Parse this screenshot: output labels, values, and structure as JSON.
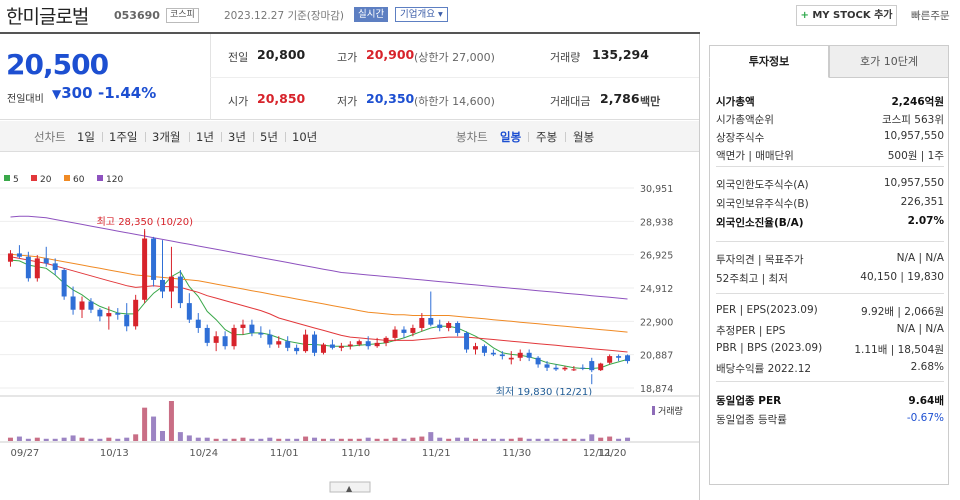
{
  "header": {
    "name": "한미글로벌",
    "code": "053690",
    "market": "코스피",
    "timestamp": "2023.12.27 기준(장마감)",
    "realtime_label": "실시간",
    "company_label": "기업개요",
    "mystock_label": "MY STOCK 추가",
    "quick_order_label": "빠른주문"
  },
  "price": {
    "current": "20,500",
    "change_label": "전일대비",
    "change": "300",
    "change_pct": "-1.44%",
    "prev_label": "전일",
    "prev": "20,800",
    "high_label": "고가",
    "high": "20,900",
    "upper_limit": "(상한가 27,000)",
    "volume_label": "거래량",
    "volume": "135,294",
    "open_label": "시가",
    "open": "20,850",
    "low_label": "저가",
    "low": "20,350",
    "lower_limit": "(하한가 14,600)",
    "amount_label": "거래대금",
    "amount": "2,786",
    "amount_unit": "백만"
  },
  "toolbar": {
    "line_chart": "선차트",
    "periods": [
      "1일",
      "1주일",
      "3개월",
      "1년",
      "3년",
      "5년",
      "10년"
    ],
    "candle_chart": "봉차트",
    "candle_periods": [
      "일봉",
      "주봉",
      "월봉"
    ]
  },
  "chart_data": {
    "type": "candlestick",
    "legend": [
      {
        "name": "5",
        "color": "#3aa84a"
      },
      {
        "name": "20",
        "color": "#e2383b"
      },
      {
        "name": "60",
        "color": "#f08a24"
      },
      {
        "name": "120",
        "color": "#8e52bf"
      }
    ],
    "y_ticks": [
      "30,951",
      "28,938",
      "26,925",
      "24,912",
      "22,900",
      "20,887",
      "18,874"
    ],
    "ylim": [
      18874,
      30951
    ],
    "x_ticks": [
      "09/27",
      "10/13",
      "10/24",
      "11/01",
      "11/10",
      "11/21",
      "11/30",
      "12/11",
      "12/20"
    ],
    "max_annotation": "최고 28,350 (10/20)",
    "min_annotation": "최저 19,830 (12/21)",
    "volume_label": "거래량",
    "candles": [
      [
        26500,
        27200,
        26200,
        27000
      ],
      [
        27000,
        27500,
        26700,
        26800
      ],
      [
        26800,
        27100,
        25300,
        25500
      ],
      [
        25500,
        26900,
        25300,
        26700
      ],
      [
        26700,
        27400,
        26200,
        26400
      ],
      [
        26400,
        26700,
        25700,
        26000
      ],
      [
        26000,
        26100,
        24200,
        24400
      ],
      [
        24400,
        25000,
        23300,
        23600
      ],
      [
        23600,
        24400,
        23100,
        24100
      ],
      [
        24100,
        24300,
        23400,
        23600
      ],
      [
        23600,
        23700,
        22900,
        23200
      ],
      [
        23200,
        23800,
        22400,
        23400
      ],
      [
        23400,
        23700,
        23000,
        23300
      ],
      [
        23300,
        24000,
        22300,
        22600
      ],
      [
        22600,
        24500,
        22400,
        24200
      ],
      [
        24200,
        28350,
        24000,
        27900
      ],
      [
        27900,
        28000,
        25000,
        25400
      ],
      [
        25400,
        27800,
        24300,
        24700
      ],
      [
        24700,
        27400,
        23700,
        25600
      ],
      [
        25600,
        26000,
        23700,
        24000
      ],
      [
        24000,
        24600,
        22800,
        23000
      ],
      [
        23000,
        23400,
        22200,
        22500
      ],
      [
        22500,
        22700,
        21400,
        21600
      ],
      [
        21600,
        22300,
        21100,
        22000
      ],
      [
        22000,
        22300,
        21200,
        21400
      ],
      [
        21400,
        22700,
        21200,
        22500
      ],
      [
        22500,
        23000,
        22100,
        22700
      ],
      [
        22700,
        23000,
        22000,
        22200
      ],
      [
        22200,
        22600,
        21900,
        22100
      ],
      [
        22100,
        22400,
        21300,
        21500
      ],
      [
        21500,
        22000,
        21300,
        21700
      ],
      [
        21700,
        22000,
        21100,
        21300
      ],
      [
        21300,
        21500,
        20900,
        21100
      ],
      [
        21100,
        22400,
        21000,
        22100
      ],
      [
        22100,
        22300,
        20800,
        21000
      ],
      [
        21000,
        21600,
        20900,
        21500
      ],
      [
        21500,
        21800,
        21200,
        21300
      ],
      [
        21300,
        21600,
        21100,
        21400
      ],
      [
        21400,
        21700,
        21200,
        21500
      ],
      [
        21500,
        21800,
        21400,
        21700
      ],
      [
        21700,
        22000,
        21200,
        21400
      ],
      [
        21400,
        21900,
        21300,
        21600
      ],
      [
        21600,
        22000,
        21400,
        21900
      ],
      [
        21900,
        22600,
        21700,
        22400
      ],
      [
        22400,
        22600,
        21900,
        22200
      ],
      [
        22200,
        22700,
        22000,
        22500
      ],
      [
        22500,
        23400,
        22300,
        23100
      ],
      [
        23100,
        24700,
        22600,
        22700
      ],
      [
        22700,
        23000,
        22300,
        22500
      ],
      [
        22500,
        22900,
        22300,
        22800
      ],
      [
        22800,
        22900,
        22000,
        22200
      ],
      [
        22200,
        22300,
        21000,
        21200
      ],
      [
        21200,
        21600,
        20900,
        21400
      ],
      [
        21400,
        21500,
        20800,
        21000
      ],
      [
        21000,
        21200,
        20800,
        20900
      ],
      [
        20900,
        21100,
        20600,
        20800
      ],
      [
        20600,
        21100,
        20300,
        20700
      ],
      [
        20700,
        21200,
        20500,
        21000
      ],
      [
        21000,
        21200,
        20500,
        20700
      ],
      [
        20700,
        20800,
        20100,
        20300
      ],
      [
        20300,
        20500,
        19900,
        20100
      ],
      [
        20100,
        20300,
        19900,
        20000
      ],
      [
        20000,
        20200,
        19900,
        20100
      ],
      [
        20000,
        20200,
        19900,
        20000
      ],
      [
        20100,
        20300,
        19950,
        20050
      ],
      [
        20500,
        20700,
        19830,
        19950
      ],
      [
        19950,
        20400,
        19900,
        20350
      ],
      [
        20400,
        20900,
        20300,
        20800
      ],
      [
        20800,
        20900,
        20500,
        20700
      ],
      [
        20850,
        20900,
        20350,
        20500
      ]
    ],
    "volumes": [
      3,
      4,
      2,
      3,
      2,
      2,
      3,
      5,
      3,
      2,
      2,
      3,
      2,
      3,
      6,
      30,
      22,
      9,
      36,
      8,
      5,
      3,
      3,
      2,
      2,
      2,
      3,
      2,
      2,
      3,
      2,
      2,
      2,
      4,
      3,
      2,
      2,
      2,
      2,
      2,
      3,
      2,
      2,
      3,
      2,
      3,
      4,
      8,
      3,
      2,
      3,
      3,
      2,
      2,
      2,
      2,
      2,
      3,
      2,
      2,
      2,
      2,
      2,
      2,
      2,
      6,
      3,
      4,
      2,
      3
    ],
    "ma": {
      "5": [
        26600,
        26550,
        26300,
        26200,
        26100,
        25700,
        25200,
        24800,
        24500,
        24100,
        23800,
        23600,
        23400,
        23350,
        23350,
        24000,
        24600,
        25000,
        25600,
        25900,
        25000,
        24400,
        23500,
        23000,
        22400,
        22100,
        22100,
        22200,
        22200,
        22100,
        21900,
        21700,
        21600,
        21500,
        21500,
        21450,
        21400,
        21400,
        21400,
        21450,
        21500,
        21550,
        21600,
        21750,
        21900,
        22100,
        22300,
        22500,
        22600,
        22600,
        22500,
        22250,
        22000,
        21700,
        21300,
        21000,
        20900,
        20850,
        20750,
        20600,
        20400,
        20300,
        20200,
        20100,
        20050,
        20050,
        20100,
        20300,
        20450,
        20600
      ],
      "20": [
        26800,
        26700,
        26600,
        26500,
        26400,
        26250,
        26100,
        25950,
        25800,
        25650,
        25500,
        25350,
        25200,
        25050,
        24950,
        25000,
        25050,
        25000,
        25000,
        24950,
        24800,
        24650,
        24450,
        24300,
        24150,
        24000,
        23850,
        23700,
        23550,
        23350,
        23100,
        22950,
        22800,
        22650,
        22500,
        22350,
        22200,
        22050,
        21950,
        21900,
        21850,
        21800,
        21750,
        21750,
        21750,
        21750,
        21800,
        21850,
        21900,
        21950,
        21950,
        21950,
        21900,
        21850,
        21800,
        21750,
        21700,
        21650,
        21600,
        21550,
        21500,
        21450,
        21400,
        21350,
        21300,
        21250,
        21200,
        21150,
        21100,
        21050
      ],
      "60": [
        26950,
        26900,
        26850,
        26800,
        26700,
        26600,
        26500,
        26400,
        26300,
        26200,
        26100,
        26000,
        25900,
        25800,
        25700,
        25650,
        25600,
        25550,
        25500,
        25450,
        25400,
        25350,
        25250,
        25150,
        25050,
        24950,
        24850,
        24750,
        24650,
        24550,
        24450,
        24350,
        24250,
        24150,
        24050,
        23950,
        23850,
        23750,
        23650,
        23550,
        23450,
        23400,
        23350,
        23300,
        23300,
        23250,
        23250,
        23250,
        23250,
        23250,
        23200,
        23150,
        23100,
        23050,
        23000,
        22950,
        22900,
        22850,
        22800,
        22750,
        22700,
        22650,
        22600,
        22550,
        22500,
        22450,
        22400,
        22350,
        22300,
        22250
      ],
      "120": [
        29200,
        29250,
        29250,
        29200,
        29150,
        29050,
        28950,
        28850,
        28750,
        28650,
        28550,
        28450,
        28350,
        28250,
        28150,
        28050,
        27950,
        27850,
        27750,
        27650,
        27550,
        27450,
        27350,
        27250,
        27150,
        27050,
        26950,
        26850,
        26750,
        26650,
        26550,
        26450,
        26350,
        26250,
        26150,
        26050,
        25950,
        25850,
        25800,
        25750,
        25700,
        25650,
        25600,
        25550,
        25500,
        25450,
        25400,
        25350,
        25300,
        25250,
        25200,
        25150,
        25100,
        25050,
        25000,
        24950,
        24900,
        24850,
        24800,
        24750,
        24700,
        24650,
        24600,
        24550,
        24500,
        24450,
        24400,
        24350,
        24300,
        24250
      ]
    }
  },
  "side": {
    "tab_info": "투자정보",
    "tab_hoga": "호가 10단계",
    "rows_a": [
      {
        "k": "시가총액",
        "v": "2,246억원",
        "bold": true
      },
      {
        "k": "시가총액순위",
        "v": "코스피 563위"
      },
      {
        "k": "상장주식수",
        "v": "10,957,550"
      },
      {
        "k": "액면가 | 매매단위",
        "v": "500원 | 1주"
      }
    ],
    "rows_b": [
      {
        "k": "외국인한도주식수(A)",
        "v": "10,957,550"
      },
      {
        "k": "외국인보유주식수(B)",
        "v": "226,351"
      },
      {
        "k": "외국인소진율(B/A)",
        "v": "2.07%",
        "bold": true
      }
    ],
    "rows_c": [
      {
        "k": "투자의견 | 목표주가",
        "v": "N/A | N/A"
      },
      {
        "k": "52주최고 | 최저",
        "v": "40,150 | 19,830"
      }
    ],
    "rows_d": [
      {
        "k": "PER | EPS(2023.09)",
        "v": "9.92배 | 2,066원"
      },
      {
        "k": "추정PER | EPS",
        "v": "N/A | N/A"
      },
      {
        "k": "PBR | BPS (2023.09)",
        "v": "1.11배 | 18,504원"
      },
      {
        "k": "배당수익률 2022.12",
        "v": "2.68%"
      }
    ],
    "rows_e": [
      {
        "k": "동일업종 PER",
        "v": "9.64배",
        "bold": true
      },
      {
        "k": "동일업종 등락률",
        "v": "-0.67%",
        "blue": true
      }
    ]
  }
}
